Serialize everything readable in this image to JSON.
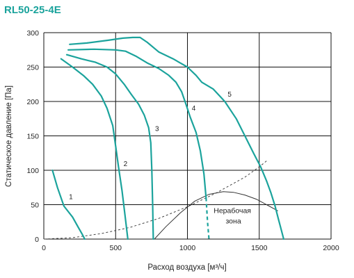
{
  "chart_data": {
    "type": "line",
    "title": "RL50-25-4E",
    "xlabel": "Расход воздуха [м³/ч]",
    "ylabel": "Статическое давление [Па]",
    "xlim": [
      0,
      2000
    ],
    "ylim": [
      0,
      300
    ],
    "xticks": [
      0,
      500,
      1000,
      1500,
      2000
    ],
    "yticks": [
      0,
      50,
      100,
      150,
      200,
      250,
      300
    ],
    "grid": true,
    "colors": {
      "title": "#1ba39c",
      "fan_curve": "#1ba39c",
      "system_curve": "#444444",
      "zone_boundary": "#333333",
      "grid": "#111111"
    },
    "series": [
      {
        "name": "1",
        "label_at": [
          175,
          58
        ],
        "values": [
          [
            60,
            100
          ],
          [
            95,
            75
          ],
          [
            140,
            48
          ],
          [
            200,
            32
          ],
          [
            240,
            17
          ],
          [
            270,
            6
          ],
          [
            285,
            0
          ]
        ]
      },
      {
        "name": "2",
        "label_at": [
          555,
          106
        ],
        "values": [
          [
            120,
            262
          ],
          [
            200,
            250
          ],
          [
            280,
            237
          ],
          [
            340,
            225
          ],
          [
            400,
            208
          ],
          [
            440,
            190
          ],
          [
            480,
            165
          ],
          [
            500,
            135
          ],
          [
            520,
            105
          ],
          [
            545,
            70
          ],
          [
            565,
            35
          ],
          [
            585,
            0
          ]
        ]
      },
      {
        "name": "3",
        "label_at": [
          775,
          157
        ],
        "values": [
          [
            160,
            268
          ],
          [
            260,
            262
          ],
          [
            360,
            257
          ],
          [
            440,
            250
          ],
          [
            500,
            240
          ],
          [
            560,
            225
          ],
          [
            610,
            210
          ],
          [
            660,
            196
          ],
          [
            700,
            180
          ],
          [
            730,
            162
          ],
          [
            745,
            140
          ],
          [
            752,
            100
          ],
          [
            758,
            50
          ],
          [
            762,
            0
          ]
        ]
      },
      {
        "name": "4",
        "label_at": [
          1030,
          187
        ],
        "values": [
          [
            170,
            275
          ],
          [
            350,
            276
          ],
          [
            500,
            275
          ],
          [
            570,
            273
          ],
          [
            640,
            266
          ],
          [
            720,
            256
          ],
          [
            800,
            248
          ],
          [
            870,
            238
          ],
          [
            920,
            228
          ],
          [
            960,
            214
          ],
          [
            990,
            196
          ],
          [
            1020,
            177
          ],
          [
            1060,
            155
          ],
          [
            1090,
            128
          ],
          [
            1115,
            95
          ],
          [
            1130,
            60
          ]
        ],
        "dashed_tail": [
          [
            1130,
            60
          ],
          [
            1140,
            25
          ],
          [
            1150,
            0
          ]
        ]
      },
      {
        "name": "5",
        "label_at": [
          1280,
          207
        ],
        "values": [
          [
            180,
            283
          ],
          [
            300,
            285
          ],
          [
            450,
            289
          ],
          [
            550,
            292
          ],
          [
            620,
            293
          ],
          [
            670,
            293
          ],
          [
            720,
            286
          ],
          [
            800,
            272
          ],
          [
            900,
            262
          ],
          [
            1000,
            250
          ],
          [
            1060,
            238
          ],
          [
            1100,
            228
          ],
          [
            1180,
            218
          ],
          [
            1260,
            200
          ],
          [
            1340,
            175
          ],
          [
            1400,
            150
          ],
          [
            1460,
            125
          ],
          [
            1510,
            105
          ],
          [
            1550,
            85
          ],
          [
            1580,
            68
          ],
          [
            1610,
            48
          ],
          [
            1635,
            28
          ],
          [
            1655,
            12
          ],
          [
            1670,
            0
          ]
        ]
      }
    ],
    "system_curve": {
      "style": "dashed",
      "values": [
        [
          0,
          0
        ],
        [
          200,
          2
        ],
        [
          400,
          8
        ],
        [
          600,
          17
        ],
        [
          800,
          30
        ],
        [
          1000,
          47
        ],
        [
          1200,
          67
        ],
        [
          1400,
          90
        ],
        [
          1500,
          105
        ],
        [
          1560,
          115
        ]
      ]
    },
    "zone_boundary": {
      "values": [
        [
          770,
          0
        ],
        [
          850,
          18
        ],
        [
          950,
          38
        ],
        [
          1050,
          55
        ],
        [
          1150,
          65
        ],
        [
          1250,
          69
        ],
        [
          1320,
          68
        ],
        [
          1400,
          64
        ],
        [
          1480,
          58
        ],
        [
          1560,
          49
        ],
        [
          1630,
          41
        ]
      ]
    },
    "annotation": {
      "lines": [
        "Нерабочая",
        "зона"
      ],
      "at": [
        1320,
        30
      ]
    }
  }
}
